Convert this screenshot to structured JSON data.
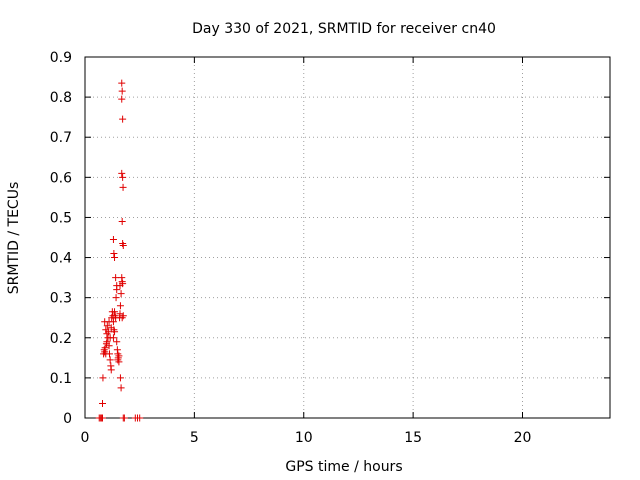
{
  "chart_data": {
    "type": "scatter",
    "title": "Day 330 of 2021, SRMTID for receiver cn40",
    "xlabel": "GPS time / hours",
    "ylabel": "SRMTID / TECUs",
    "xlim": [
      0,
      24
    ],
    "ylim": [
      0,
      0.9
    ],
    "xticks": [
      0,
      5,
      10,
      15,
      20
    ],
    "xtick_labels": [
      "0",
      "5",
      "10",
      "15",
      "20"
    ],
    "yticks": [
      0,
      0.1,
      0.2,
      0.3,
      0.4,
      0.5,
      0.6,
      0.7,
      0.8,
      0.9
    ],
    "ytick_labels": [
      "0",
      "0.1",
      "0.2",
      "0.3",
      "0.4",
      "0.5",
      "0.6",
      "0.7",
      "0.8",
      "0.9"
    ],
    "grid": true,
    "series": [
      {
        "name": "SRMTID",
        "marker": "plus",
        "color": "#e00000",
        "points": [
          [
            0.65,
            0.0
          ],
          [
            0.7,
            0.0
          ],
          [
            0.75,
            0.0
          ],
          [
            0.8,
            0.0
          ],
          [
            1.75,
            0.0
          ],
          [
            1.8,
            0.0
          ],
          [
            2.3,
            0.0
          ],
          [
            2.4,
            0.0
          ],
          [
            2.5,
            0.0
          ],
          [
            0.8,
            0.036
          ],
          [
            0.82,
            0.1
          ],
          [
            0.85,
            0.16
          ],
          [
            0.88,
            0.17
          ],
          [
            0.9,
            0.165
          ],
          [
            0.92,
            0.175
          ],
          [
            0.95,
            0.16
          ],
          [
            0.98,
            0.185
          ],
          [
            1.0,
            0.19
          ],
          [
            0.9,
            0.24
          ],
          [
            0.95,
            0.22
          ],
          [
            1.0,
            0.21
          ],
          [
            1.02,
            0.23
          ],
          [
            1.05,
            0.2
          ],
          [
            1.08,
            0.215
          ],
          [
            1.1,
            0.24
          ],
          [
            1.1,
            0.18
          ],
          [
            1.12,
            0.16
          ],
          [
            1.15,
            0.145
          ],
          [
            1.18,
            0.13
          ],
          [
            1.2,
            0.12
          ],
          [
            1.15,
            0.2
          ],
          [
            1.2,
            0.225
          ],
          [
            1.22,
            0.25
          ],
          [
            1.25,
            0.265
          ],
          [
            1.28,
            0.255
          ],
          [
            1.3,
            0.24
          ],
          [
            1.32,
            0.22
          ],
          [
            1.35,
            0.215
          ],
          [
            1.3,
            0.2
          ],
          [
            1.35,
            0.265
          ],
          [
            1.38,
            0.255
          ],
          [
            1.4,
            0.25
          ],
          [
            1.42,
            0.3
          ],
          [
            1.45,
            0.32
          ],
          [
            1.4,
            0.35
          ],
          [
            1.45,
            0.33
          ],
          [
            1.3,
            0.445
          ],
          [
            1.32,
            0.41
          ],
          [
            1.35,
            0.4
          ],
          [
            1.45,
            0.19
          ],
          [
            1.48,
            0.17
          ],
          [
            1.5,
            0.16
          ],
          [
            1.52,
            0.15
          ],
          [
            1.55,
            0.14
          ],
          [
            1.5,
            0.145
          ],
          [
            1.55,
            0.155
          ],
          [
            1.58,
            0.25
          ],
          [
            1.6,
            0.26
          ],
          [
            1.62,
            0.28
          ],
          [
            1.6,
            0.33
          ],
          [
            1.65,
            0.31
          ],
          [
            1.68,
            0.35
          ],
          [
            1.7,
            0.34
          ],
          [
            1.7,
            0.25
          ],
          [
            1.75,
            0.255
          ],
          [
            1.72,
            0.335
          ],
          [
            1.62,
            0.1
          ],
          [
            1.65,
            0.075
          ],
          [
            1.7,
            0.49
          ],
          [
            1.72,
            0.435
          ],
          [
            1.75,
            0.43
          ],
          [
            1.68,
            0.61
          ],
          [
            1.72,
            0.6
          ],
          [
            1.74,
            0.575
          ],
          [
            1.72,
            0.745
          ],
          [
            1.68,
            0.795
          ],
          [
            1.7,
            0.815
          ],
          [
            1.68,
            0.835
          ]
        ]
      }
    ]
  }
}
